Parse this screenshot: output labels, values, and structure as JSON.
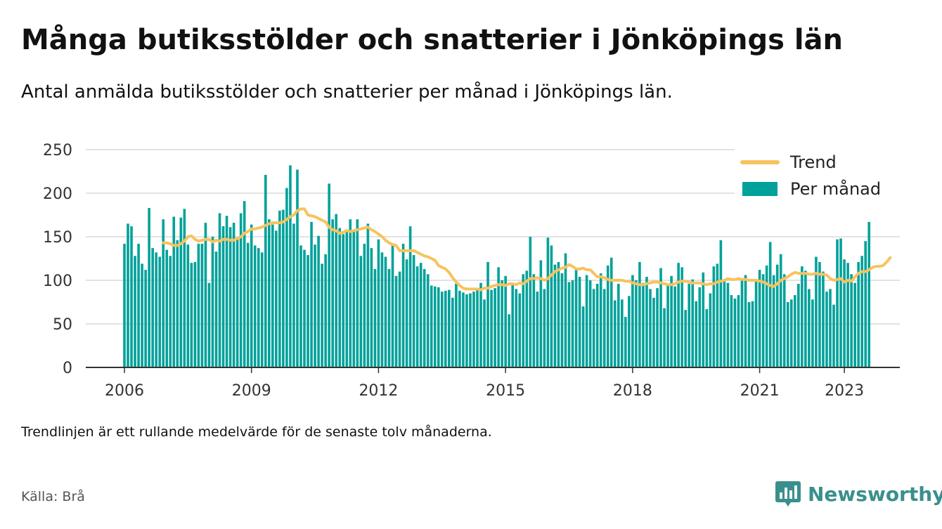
{
  "title": "Många butiksstölder och snatterier i Jönköpings län",
  "subtitle": "Antal anmälda butiksstölder och snatterier per månad i Jönköpings län.",
  "note": "Trendlinjen är ett rullande medelvärde för de senaste tolv månaderna.",
  "source": "Källa: Brå",
  "brand": {
    "name": "Newsworthy",
    "icon": "newsworthy-logo-icon",
    "color": "#3a8f8c"
  },
  "chart_data": {
    "type": "bar",
    "title": "",
    "xlabel": "",
    "ylabel": "",
    "x_start": "2006-01",
    "x_ticks": [
      "2006",
      "2009",
      "2012",
      "2015",
      "2018",
      "2021",
      "2023"
    ],
    "y_ticks": [
      "0",
      "50",
      "100",
      "150",
      "200",
      "250"
    ],
    "ylim": [
      0,
      250
    ],
    "grid": true,
    "legend_position": "top-right",
    "colors": {
      "bars": "#00a19a",
      "trend": "#f7c35f"
    },
    "series": [
      {
        "name": "Per månad",
        "type": "bar",
        "values": [
          142,
          165,
          162,
          128,
          142,
          119,
          112,
          183,
          137,
          132,
          127,
          170,
          135,
          128,
          173,
          146,
          172,
          182,
          141,
          120,
          121,
          142,
          142,
          166,
          97,
          150,
          133,
          177,
          162,
          174,
          161,
          166,
          147,
          177,
          191,
          143,
          164,
          140,
          137,
          132,
          221,
          170,
          164,
          157,
          180,
          181,
          206,
          232,
          165,
          227,
          140,
          135,
          129,
          167,
          141,
          151,
          119,
          130,
          211,
          170,
          176,
          160,
          153,
          158,
          170,
          158,
          170,
          128,
          142,
          165,
          137,
          113,
          147,
          132,
          127,
          113,
          141,
          105,
          110,
          142,
          124,
          162,
          129,
          116,
          120,
          113,
          107,
          94,
          93,
          92,
          87,
          88,
          89,
          80,
          96,
          88,
          86,
          84,
          85,
          87,
          91,
          97,
          78,
          121,
          89,
          91,
          115,
          100,
          105,
          61,
          95,
          90,
          85,
          107,
          111,
          150,
          107,
          87,
          123,
          90,
          149,
          140,
          118,
          121,
          108,
          131,
          98,
          100,
          112,
          104,
          70,
          106,
          100,
          90,
          96,
          108,
          90,
          117,
          126,
          77,
          96,
          78,
          58,
          82,
          106,
          100,
          121,
          97,
          104,
          90,
          80,
          91,
          114,
          68,
          94,
          105,
          93,
          120,
          115,
          66,
          96,
          101,
          76,
          92,
          109,
          67,
          85,
          116,
          119,
          146,
          99,
          97,
          83,
          79,
          83,
          100,
          106,
          75,
          76,
          101,
          112,
          107,
          117,
          144,
          106,
          118,
          130,
          107,
          75,
          78,
          83,
          96,
          116,
          111,
          90,
          78,
          127,
          121,
          110,
          87,
          90,
          72,
          147,
          148,
          124,
          120,
          107,
          97,
          121,
          128,
          145,
          167
        ]
      },
      {
        "name": "Trend",
        "type": "line",
        "start_index": 11,
        "values": [
          143,
          143,
          142,
          140,
          140,
          142,
          145,
          150,
          151,
          147,
          145,
          146,
          147,
          147,
          144,
          146,
          145,
          147,
          147,
          146,
          146,
          148,
          150,
          154,
          156,
          159,
          159,
          160,
          161,
          163,
          165,
          166,
          166,
          166,
          167,
          170,
          173,
          175,
          180,
          182,
          182,
          175,
          174,
          173,
          171,
          169,
          167,
          161,
          158,
          157,
          154,
          155,
          157,
          156,
          157,
          158,
          159,
          160,
          161,
          158,
          156,
          153,
          150,
          146,
          143,
          141,
          140,
          134,
          134,
          134,
          134,
          134,
          132,
          130,
          128,
          127,
          125,
          123,
          117,
          115,
          113,
          109,
          103,
          98,
          94,
          91,
          90,
          90,
          90,
          90,
          89,
          91,
          91,
          93,
          94,
          95,
          95,
          94,
          96,
          96,
          95,
          97,
          96,
          99,
          102,
          102,
          103,
          102,
          100,
          102,
          106,
          110,
          112,
          114,
          115,
          118,
          116,
          113,
          113,
          114,
          112,
          112,
          108,
          104,
          104,
          103,
          101,
          100,
          100,
          100,
          100,
          99,
          99,
          97,
          96,
          95,
          95,
          96,
          97,
          98,
          98,
          97,
          96,
          95,
          95,
          96,
          98,
          99,
          99,
          98,
          97,
          97,
          97,
          96,
          95,
          96,
          96,
          98,
          99,
          100,
          102,
          101,
          101,
          102,
          101,
          101,
          100,
          100,
          100,
          99,
          98,
          96,
          94,
          93,
          96,
          100,
          102,
          104,
          107,
          109,
          108,
          108,
          108,
          107,
          107,
          108,
          107,
          107,
          106,
          102,
          100,
          101,
          102,
          98,
          100,
          99,
          104,
          108,
          110,
          110,
          112,
          115,
          116,
          116,
          117,
          121,
          126
        ]
      }
    ]
  }
}
